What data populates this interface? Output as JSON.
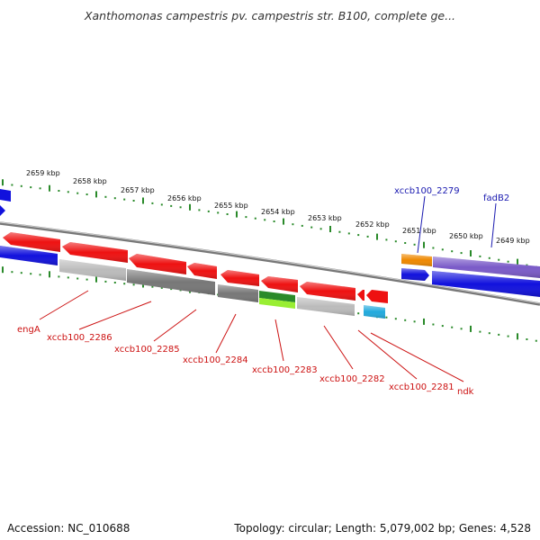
{
  "title": "Xanthomonas campestris pv. campestris str. B100, complete ge...",
  "footer": {
    "accession": "Accession: NC_010688",
    "summary": "Topology: circular; Length: 5,079,002 bp; Genes: 4,528"
  },
  "colors": {
    "tick": "#2a8a2a",
    "forward_label": "#1a1ab0",
    "reverse_label": "#cc1111",
    "backbone": "#888888",
    "red_gene": "#ee1111",
    "blue_gene": "#1111dd",
    "purple_gene": "#7a5ac8",
    "orange_gene": "#ee8800",
    "green_gene": "#2a8a2a",
    "lime_gene": "#99ee33",
    "cyan_gene": "#22aadd",
    "gray_gene": "#777777",
    "lightgray_gene": "#bbbbbb"
  },
  "scale": {
    "unit": "kbp",
    "ticks": [
      {
        "label": "2659 kbp"
      },
      {
        "label": "2658 kbp"
      },
      {
        "label": "2657 kbp"
      },
      {
        "label": "2656 kbp"
      },
      {
        "label": "2655 kbp"
      },
      {
        "label": "2654 kbp"
      },
      {
        "label": "2653 kbp"
      },
      {
        "label": "2652 kbp"
      },
      {
        "label": "2651 kbp"
      },
      {
        "label": "2650 kbp"
      },
      {
        "label": "2649 kbp"
      }
    ]
  },
  "gene_labels": {
    "forward": [
      "xccb100_2279",
      "fadB2"
    ],
    "reverse": [
      "engA",
      "xccb100_2286",
      "xccb100_2285",
      "xccb100_2284",
      "xccb100_2283",
      "xccb100_2282",
      "xccb100_2281",
      "ndk"
    ]
  }
}
